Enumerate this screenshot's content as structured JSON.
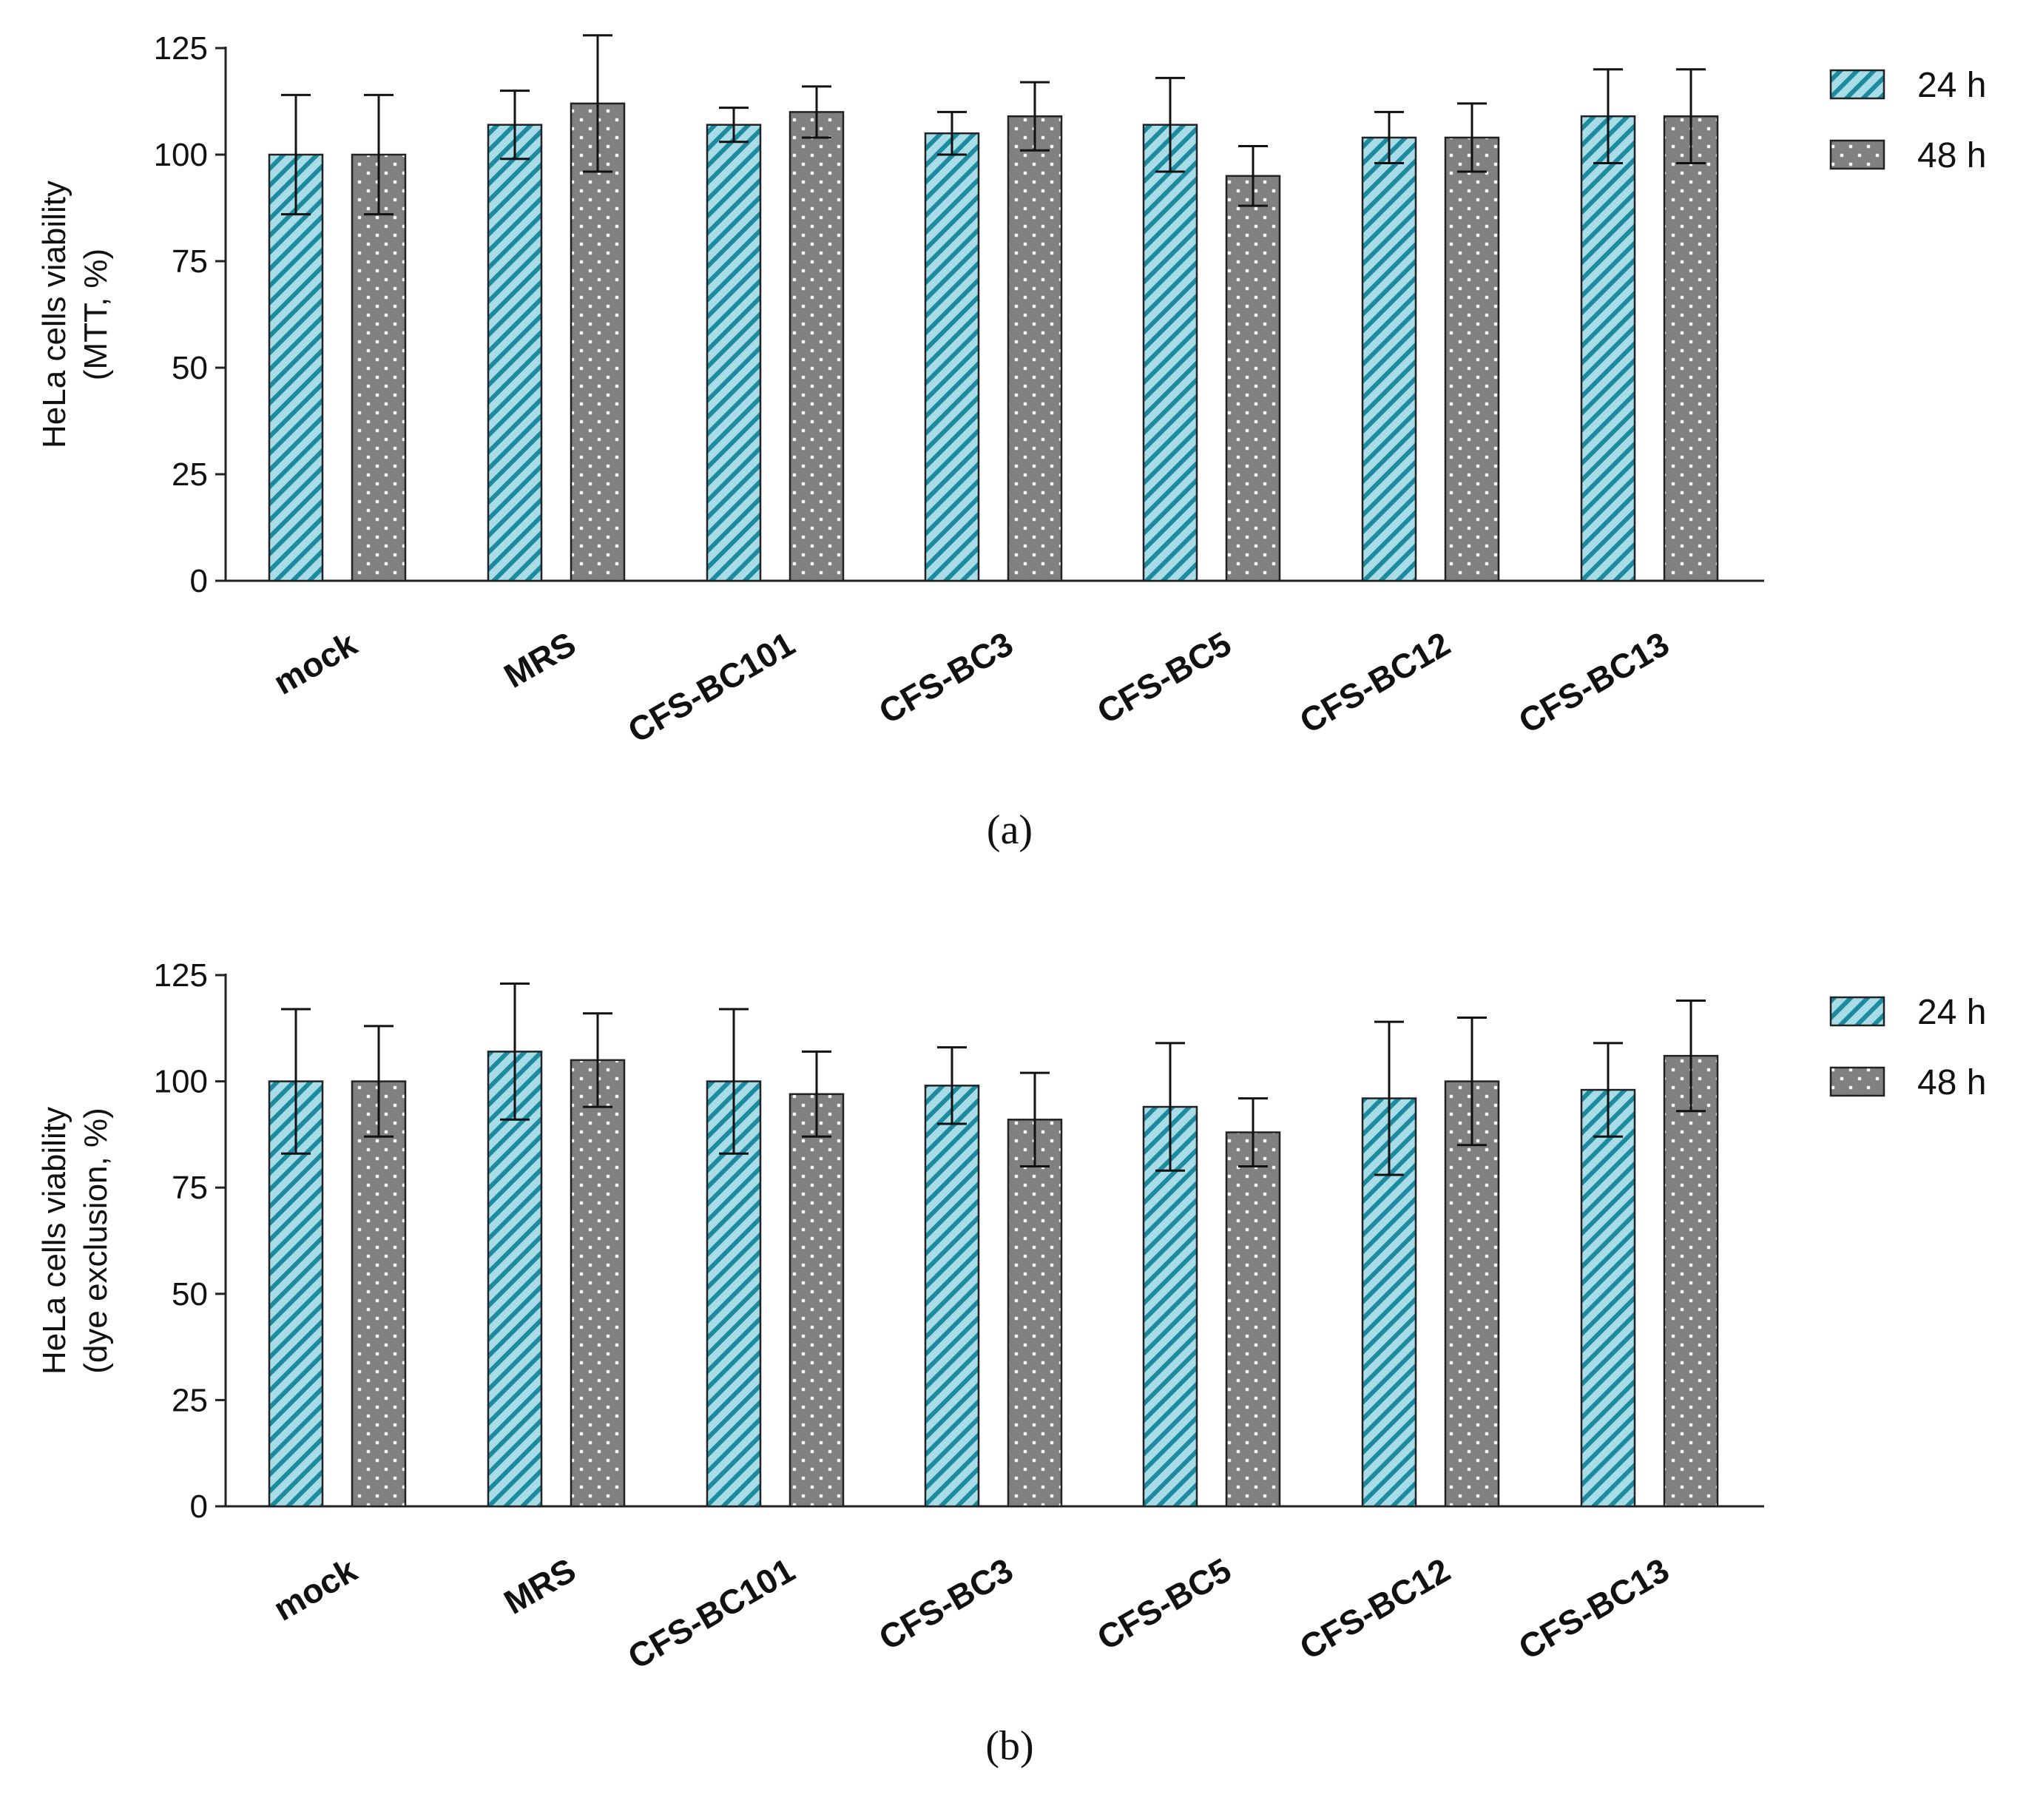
{
  "legend": [
    {
      "label": "24 h",
      "pattern": "hatch",
      "fill": "#a8dce6",
      "stroke": "#1d8aa0"
    },
    {
      "label": "48 h",
      "pattern": "dots",
      "fill": "#808080",
      "dot": "#ffffff"
    }
  ],
  "chart_data": [
    {
      "type": "bar",
      "panel_label": "(a)",
      "ylabel_line1": "HeLa cells viability",
      "ylabel_line2": "(MTT, %)",
      "ylim": [
        0,
        125
      ],
      "yticks": [
        0,
        25,
        50,
        75,
        100,
        125
      ],
      "categories": [
        "mock",
        "MRS",
        "CFS-BC101",
        "CFS-BC3",
        "CFS-BC5",
        "CFS-BC12",
        "CFS-BC13"
      ],
      "series": [
        {
          "name": "24 h",
          "values": [
            100,
            107,
            107,
            105,
            107,
            104,
            109
          ],
          "errors": [
            14,
            8,
            4,
            5,
            11,
            6,
            11
          ]
        },
        {
          "name": "48 h",
          "values": [
            100,
            112,
            110,
            109,
            95,
            104,
            109
          ],
          "errors": [
            14,
            16,
            6,
            8,
            7,
            8,
            11
          ]
        }
      ]
    },
    {
      "type": "bar",
      "panel_label": "(b)",
      "ylabel_line1": "HeLa cells viability",
      "ylabel_line2": "(dye exclusion, %)",
      "ylim": [
        0,
        125
      ],
      "yticks": [
        0,
        25,
        50,
        75,
        100,
        125
      ],
      "categories": [
        "mock",
        "MRS",
        "CFS-BC101",
        "CFS-BC3",
        "CFS-BC5",
        "CFS-BC12",
        "CFS-BC13"
      ],
      "series": [
        {
          "name": "24 h",
          "values": [
            100,
            107,
            100,
            99,
            94,
            96,
            98
          ],
          "errors": [
            17,
            16,
            17,
            9,
            15,
            18,
            11
          ]
        },
        {
          "name": "48 h",
          "values": [
            100,
            105,
            97,
            91,
            88,
            100,
            106
          ],
          "errors": [
            13,
            11,
            10,
            11,
            8,
            15,
            13
          ]
        }
      ]
    }
  ]
}
